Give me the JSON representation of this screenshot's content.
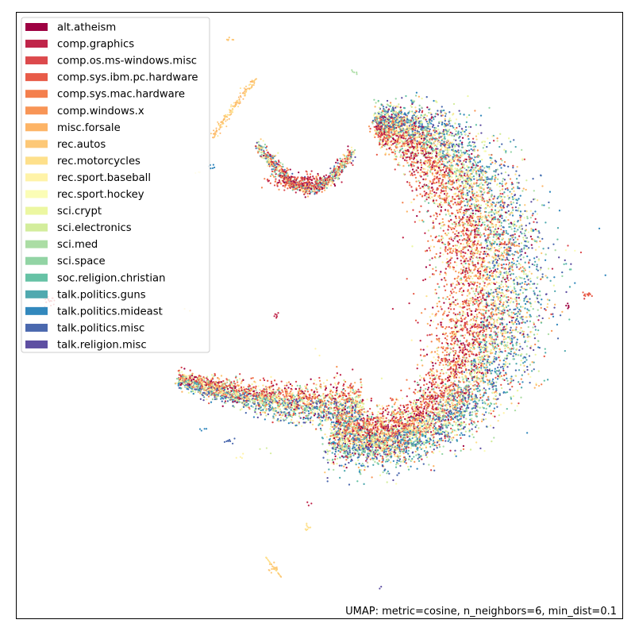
{
  "chart_data": {
    "type": "scatter",
    "title": "",
    "xlabel": "",
    "ylabel": "",
    "grid": false,
    "axis_ticks": false,
    "legend_position": "top-left",
    "caption": "UMAP: metric=cosine, n_neighbors=6, min_dist=0.1",
    "xlim": [
      0,
      100
    ],
    "ylim": [
      0,
      100
    ],
    "series": [
      {
        "name": "alt.atheism",
        "color": "#9e0142"
      },
      {
        "name": "comp.graphics",
        "color": "#c0254a"
      },
      {
        "name": "comp.os.ms-windows.misc",
        "color": "#dc494c"
      },
      {
        "name": "comp.sys.ibm.pc.hardware",
        "color": "#e85b48"
      },
      {
        "name": "comp.sys.mac.hardware",
        "color": "#f47f4d"
      },
      {
        "name": "comp.windows.x",
        "color": "#f89556"
      },
      {
        "name": "misc.forsale",
        "color": "#fdb466"
      },
      {
        "name": "rec.autos",
        "color": "#fdc877"
      },
      {
        "name": "rec.motorcycles",
        "color": "#fee08b"
      },
      {
        "name": "rec.sport.baseball",
        "color": "#fff3a8"
      },
      {
        "name": "rec.sport.hockey",
        "color": "#fbfdb6"
      },
      {
        "name": "sci.crypt",
        "color": "#ecf7a1"
      },
      {
        "name": "sci.electronics",
        "color": "#d3ed9c"
      },
      {
        "name": "sci.med",
        "color": "#abdda4"
      },
      {
        "name": "sci.space",
        "color": "#92d4a4"
      },
      {
        "name": "soc.religion.christian",
        "color": "#66c2a5"
      },
      {
        "name": "talk.politics.guns",
        "color": "#50a9af"
      },
      {
        "name": "talk.politics.mideast",
        "color": "#3288bd"
      },
      {
        "name": "talk.politics.misc",
        "color": "#4a68ae"
      },
      {
        "name": "talk.religion.misc",
        "color": "#5e4fa2"
      }
    ],
    "structure_summary": "single C/crescent-shaped embedding with small detached fragments"
  }
}
